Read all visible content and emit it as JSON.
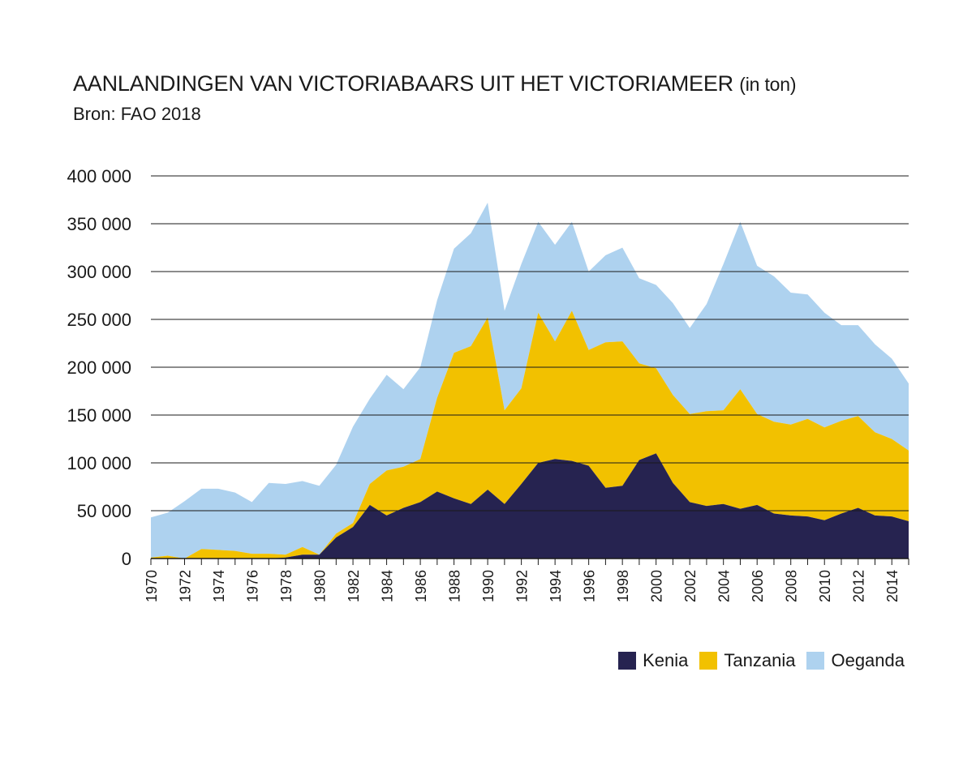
{
  "title": "AANLANDINGEN VAN VICTORIABAARS UIT HET VICTORIAMEER",
  "title_unit": "(in ton)",
  "subtitle": "Bron: FAO 2018",
  "colors": {
    "kenia": "#262350",
    "tanzania": "#f2c100",
    "oeganda": "#aed2ef",
    "grid": "#1a1a1a"
  },
  "chart_data": {
    "type": "area",
    "stacked": true,
    "x": [
      1970,
      1971,
      1972,
      1973,
      1974,
      1975,
      1976,
      1977,
      1978,
      1979,
      1980,
      1981,
      1982,
      1983,
      1984,
      1985,
      1986,
      1987,
      1988,
      1989,
      1990,
      1991,
      1992,
      1993,
      1994,
      1995,
      1996,
      1997,
      1998,
      1999,
      2000,
      2001,
      2002,
      2003,
      2004,
      2005,
      2006,
      2007,
      2008,
      2009,
      2010,
      2011,
      2012,
      2013,
      2014,
      2015
    ],
    "x_tick_labels": [
      "1970",
      "1972",
      "1974",
      "1976",
      "1978",
      "1980",
      "1982",
      "1984",
      "1986",
      "1988",
      "1990",
      "1992",
      "1994",
      "1996",
      "1998",
      "2000",
      "2002",
      "2004",
      "2006",
      "2008",
      "2010",
      "2012",
      "2014"
    ],
    "y_tick_labels": [
      "0",
      "50 000",
      "100 000",
      "150 000",
      "200 000",
      "250 000",
      "300 000",
      "350 000",
      "400 000"
    ],
    "ylim": [
      0,
      400000
    ],
    "grid": true,
    "legend_position": "bottom-right",
    "series": [
      {
        "name": "Kenia",
        "color_key": "kenia",
        "values": [
          0,
          0,
          0,
          0,
          0,
          0,
          0,
          0,
          1000,
          4000,
          4000,
          22000,
          33000,
          56000,
          45000,
          53000,
          59000,
          70000,
          63000,
          57000,
          72000,
          57000,
          78000,
          100000,
          104000,
          102000,
          97000,
          74000,
          76000,
          103000,
          110000,
          79000,
          59000,
          55000,
          57000,
          52000,
          56000,
          47000,
          45000,
          44000,
          40000,
          47000,
          53000,
          45000,
          44000,
          39000
        ]
      },
      {
        "name": "Tanzania",
        "color_key": "tanzania",
        "values": [
          1000,
          3000,
          0,
          10000,
          9000,
          8000,
          5000,
          5000,
          3000,
          8000,
          0,
          4000,
          4000,
          22000,
          47000,
          43000,
          45000,
          98000,
          152000,
          165000,
          180000,
          98000,
          100000,
          157000,
          123000,
          157000,
          121000,
          152000,
          151000,
          101000,
          89000,
          92000,
          92000,
          99000,
          98000,
          125000,
          95000,
          96000,
          95000,
          102000,
          97000,
          97000,
          96000,
          87000,
          81000,
          74000
        ]
      },
      {
        "name": "Oeganda",
        "color_key": "oeganda",
        "values": [
          42000,
          45000,
          60000,
          63000,
          64000,
          61000,
          54000,
          74000,
          74000,
          69000,
          72000,
          72000,
          101000,
          89000,
          100000,
          81000,
          96000,
          102000,
          109000,
          118000,
          120000,
          104000,
          130000,
          95000,
          101000,
          93000,
          82000,
          91000,
          98000,
          89000,
          87000,
          96000,
          90000,
          112000,
          153000,
          175000,
          155000,
          152000,
          138000,
          130000,
          120000,
          100000,
          95000,
          92000,
          84000,
          70000
        ]
      }
    ]
  }
}
